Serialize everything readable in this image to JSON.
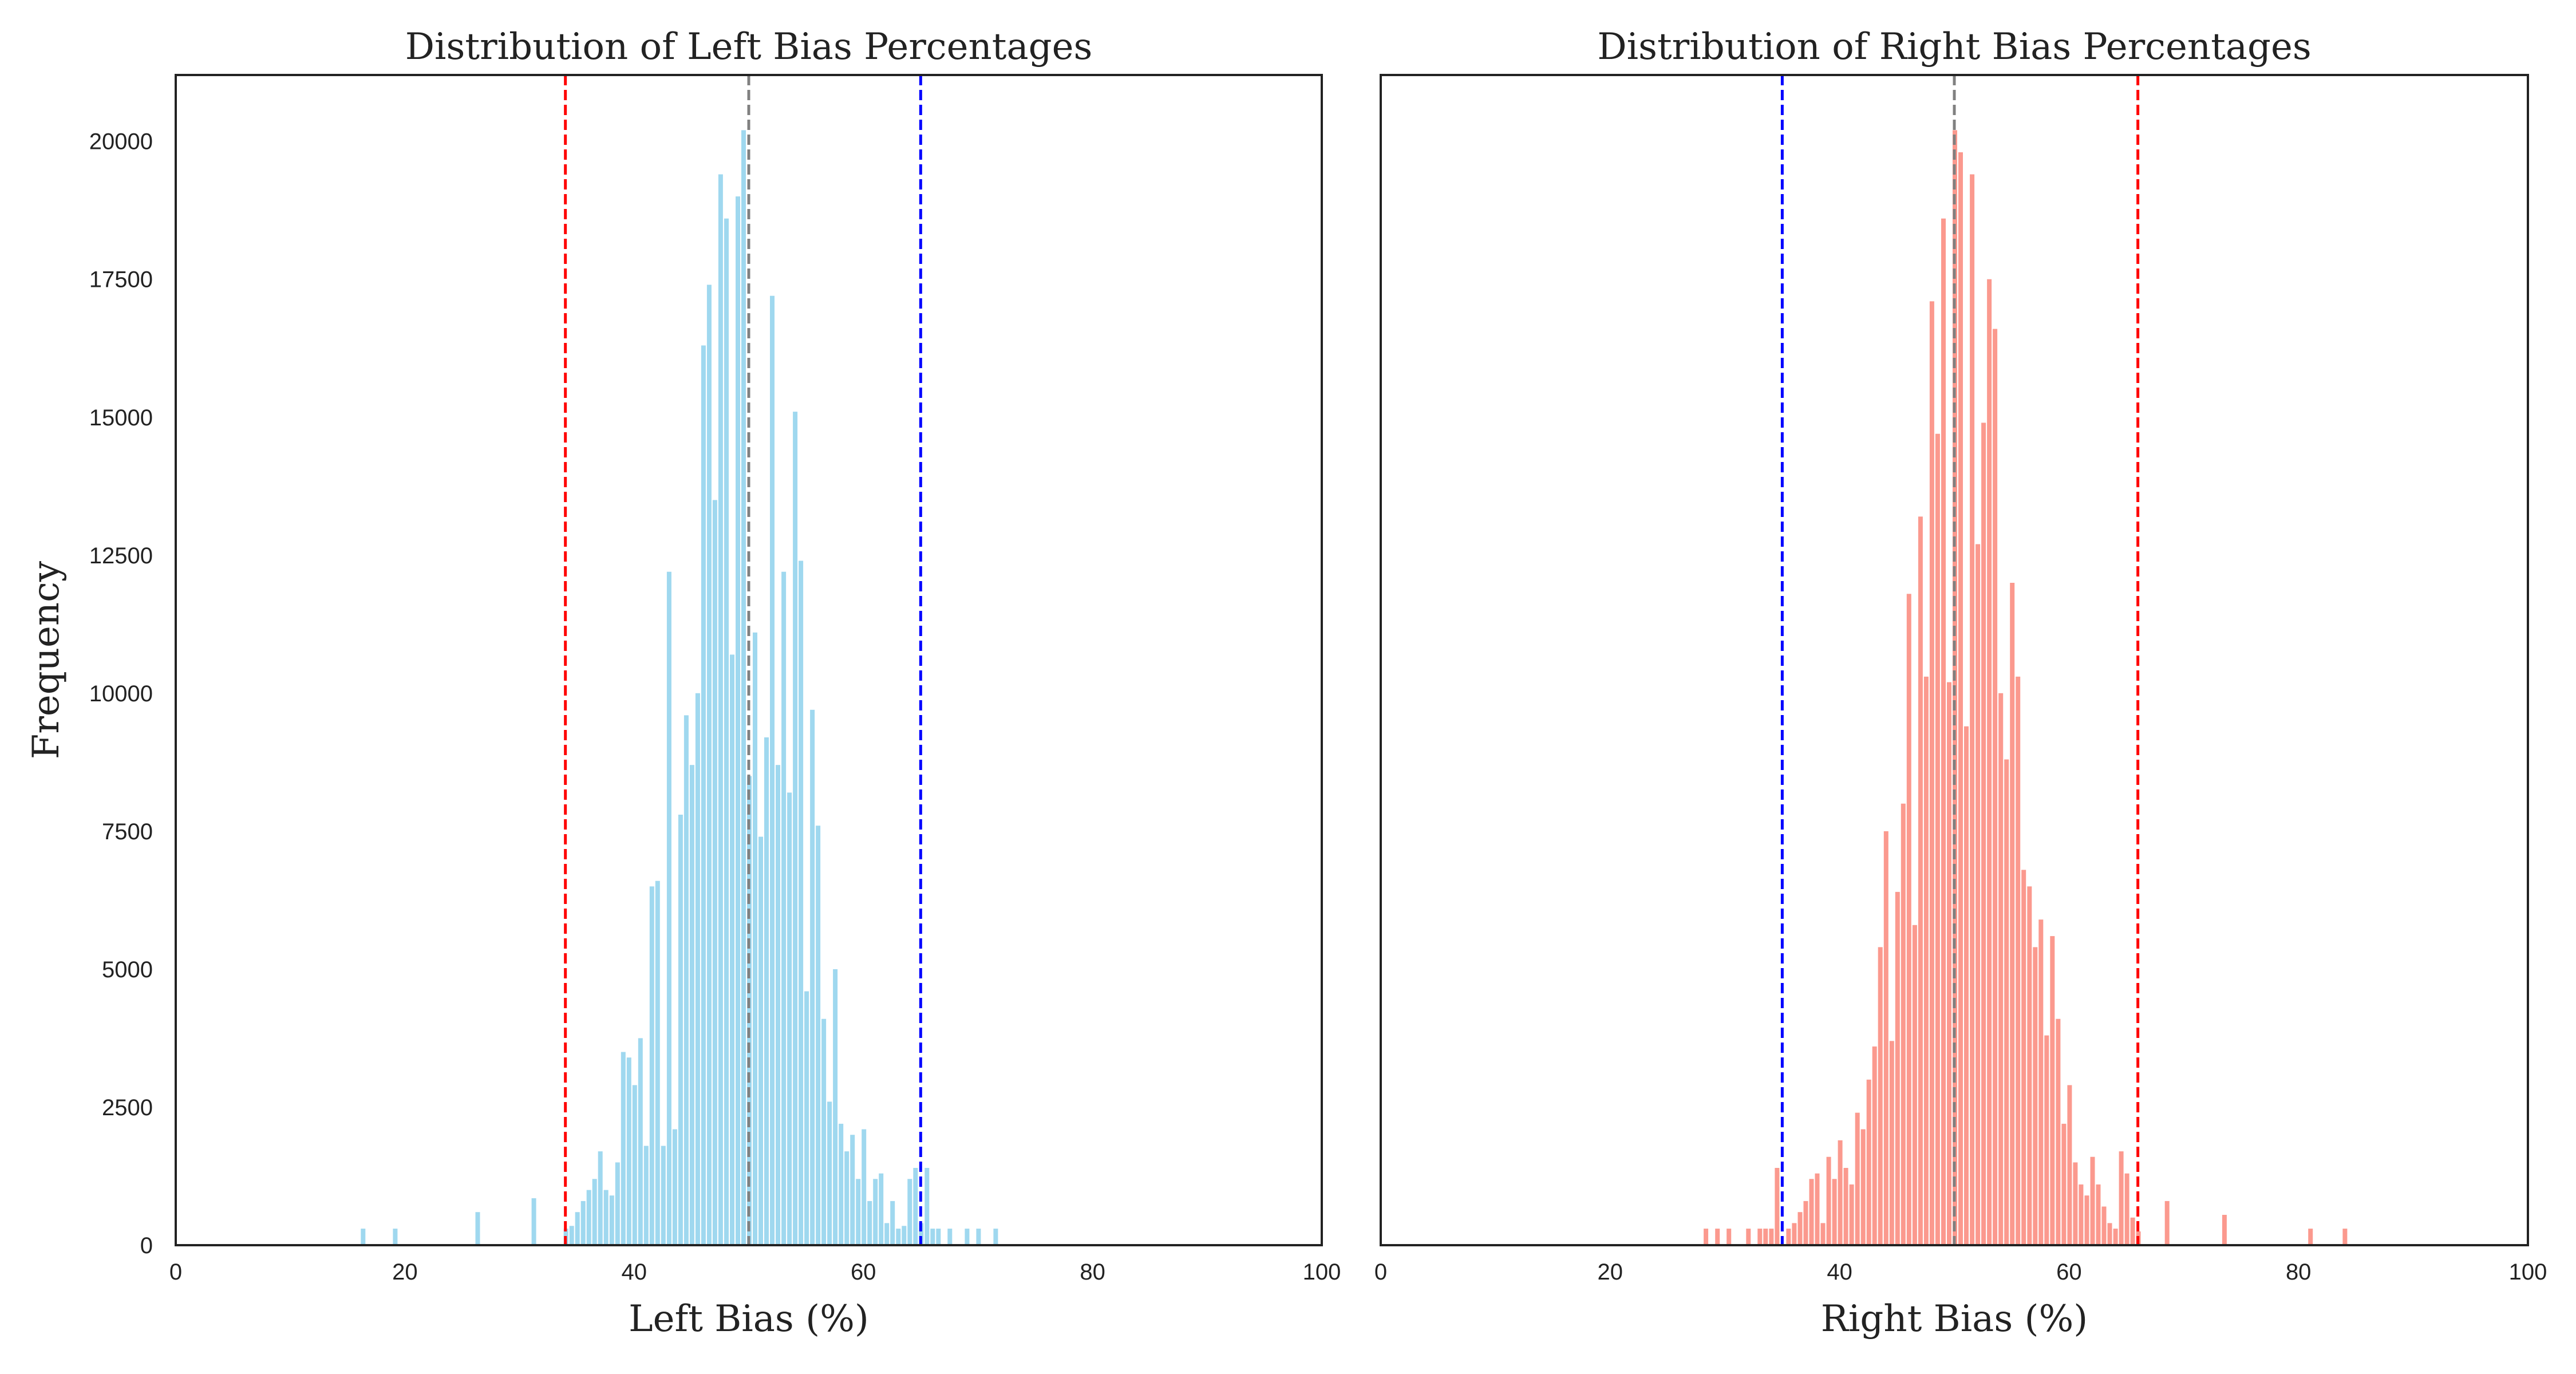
{
  "ylabel": "Frequency",
  "colors": {
    "left_bars": "#87ceeb",
    "right_bars": "#fa8072",
    "red_line": "#ff0000",
    "blue_line": "#0000ff",
    "gray_line": "#808080",
    "axes": "#222222"
  },
  "chart_data": [
    {
      "type": "bar",
      "title": "Distribution of Left Bias Percentages",
      "xlabel": "Left Bias (%)",
      "ylabel": "Frequency",
      "xlim": [
        0,
        100
      ],
      "ylim": [
        0,
        21200
      ],
      "xticks": [
        0,
        20,
        40,
        60,
        80,
        100
      ],
      "yticks": [
        0,
        2500,
        5000,
        7500,
        10000,
        12500,
        15000,
        17500,
        20000
      ],
      "bar_color": "#87ceeb",
      "bin_width": 0.5,
      "reference_lines": [
        {
          "x": 34,
          "color": "#ff0000",
          "style": "dashed"
        },
        {
          "x": 50,
          "color": "#808080",
          "style": "dashed"
        },
        {
          "x": 65,
          "color": "#0000ff",
          "style": "dashed"
        }
      ],
      "bins": [
        {
          "x": 16.4,
          "count": 300
        },
        {
          "x": 19.2,
          "count": 300
        },
        {
          "x": 26.4,
          "count": 600
        },
        {
          "x": 31.3,
          "count": 850
        },
        {
          "x": 34.1,
          "count": 300
        },
        {
          "x": 34.6,
          "count": 350
        },
        {
          "x": 35.1,
          "count": 600
        },
        {
          "x": 35.6,
          "count": 800
        },
        {
          "x": 36.1,
          "count": 1000
        },
        {
          "x": 36.6,
          "count": 1200
        },
        {
          "x": 37.1,
          "count": 1700
        },
        {
          "x": 37.6,
          "count": 1000
        },
        {
          "x": 38.1,
          "count": 900
        },
        {
          "x": 38.6,
          "count": 1500
        },
        {
          "x": 39.1,
          "count": 3500
        },
        {
          "x": 39.6,
          "count": 3400
        },
        {
          "x": 40.1,
          "count": 2900
        },
        {
          "x": 40.6,
          "count": 3750
        },
        {
          "x": 41.1,
          "count": 1800
        },
        {
          "x": 41.6,
          "count": 6500
        },
        {
          "x": 42.1,
          "count": 6600
        },
        {
          "x": 42.6,
          "count": 1800
        },
        {
          "x": 43.1,
          "count": 12200
        },
        {
          "x": 43.6,
          "count": 2100
        },
        {
          "x": 44.1,
          "count": 7800
        },
        {
          "x": 44.6,
          "count": 9600
        },
        {
          "x": 45.1,
          "count": 8700
        },
        {
          "x": 45.6,
          "count": 10000
        },
        {
          "x": 46.1,
          "count": 16300
        },
        {
          "x": 46.6,
          "count": 17400
        },
        {
          "x": 47.1,
          "count": 13500
        },
        {
          "x": 47.6,
          "count": 19400
        },
        {
          "x": 48.1,
          "count": 18600
        },
        {
          "x": 48.6,
          "count": 10700
        },
        {
          "x": 49.1,
          "count": 19000
        },
        {
          "x": 49.6,
          "count": 20200
        },
        {
          "x": 50.1,
          "count": 8500
        },
        {
          "x": 50.6,
          "count": 11100
        },
        {
          "x": 51.1,
          "count": 7400
        },
        {
          "x": 51.6,
          "count": 9200
        },
        {
          "x": 52.1,
          "count": 17200
        },
        {
          "x": 52.6,
          "count": 8700
        },
        {
          "x": 53.1,
          "count": 12200
        },
        {
          "x": 53.6,
          "count": 8200
        },
        {
          "x": 54.1,
          "count": 15100
        },
        {
          "x": 54.6,
          "count": 12400
        },
        {
          "x": 55.1,
          "count": 4600
        },
        {
          "x": 55.6,
          "count": 9700
        },
        {
          "x": 56.1,
          "count": 7600
        },
        {
          "x": 56.6,
          "count": 4100
        },
        {
          "x": 57.1,
          "count": 2600
        },
        {
          "x": 57.6,
          "count": 5000
        },
        {
          "x": 58.1,
          "count": 2200
        },
        {
          "x": 58.6,
          "count": 1700
        },
        {
          "x": 59.1,
          "count": 2000
        },
        {
          "x": 59.6,
          "count": 1200
        },
        {
          "x": 60.1,
          "count": 2100
        },
        {
          "x": 60.6,
          "count": 800
        },
        {
          "x": 61.1,
          "count": 1200
        },
        {
          "x": 61.6,
          "count": 1300
        },
        {
          "x": 62.1,
          "count": 400
        },
        {
          "x": 62.6,
          "count": 800
        },
        {
          "x": 63.1,
          "count": 300
        },
        {
          "x": 63.6,
          "count": 350
        },
        {
          "x": 64.1,
          "count": 1200
        },
        {
          "x": 64.6,
          "count": 1400
        },
        {
          "x": 65.1,
          "count": 400
        },
        {
          "x": 65.6,
          "count": 1400
        },
        {
          "x": 66.1,
          "count": 300
        },
        {
          "x": 66.6,
          "count": 300
        },
        {
          "x": 67.6,
          "count": 300
        },
        {
          "x": 69.1,
          "count": 300
        },
        {
          "x": 70.1,
          "count": 300
        },
        {
          "x": 71.6,
          "count": 300
        }
      ]
    },
    {
      "type": "bar",
      "title": "Distribution of Right Bias Percentages",
      "xlabel": "Right Bias (%)",
      "ylabel": "",
      "xlim": [
        0,
        100
      ],
      "ylim": [
        0,
        21200
      ],
      "xticks": [
        0,
        20,
        40,
        60,
        80,
        100
      ],
      "yticks": [],
      "bar_color": "#fa8072",
      "bin_width": 0.5,
      "reference_lines": [
        {
          "x": 35,
          "color": "#0000ff",
          "style": "dashed"
        },
        {
          "x": 50,
          "color": "#808080",
          "style": "dashed"
        },
        {
          "x": 66,
          "color": "#ff0000",
          "style": "dashed"
        }
      ],
      "bins": [
        {
          "x": 28.4,
          "count": 300
        },
        {
          "x": 29.4,
          "count": 300
        },
        {
          "x": 30.4,
          "count": 300
        },
        {
          "x": 32.1,
          "count": 300
        },
        {
          "x": 33.1,
          "count": 300
        },
        {
          "x": 33.6,
          "count": 300
        },
        {
          "x": 34.1,
          "count": 300
        },
        {
          "x": 34.6,
          "count": 1400
        },
        {
          "x": 35.6,
          "count": 300
        },
        {
          "x": 36.1,
          "count": 400
        },
        {
          "x": 36.6,
          "count": 600
        },
        {
          "x": 37.1,
          "count": 800
        },
        {
          "x": 37.6,
          "count": 1200
        },
        {
          "x": 38.1,
          "count": 1300
        },
        {
          "x": 38.6,
          "count": 400
        },
        {
          "x": 39.1,
          "count": 1600
        },
        {
          "x": 39.6,
          "count": 1200
        },
        {
          "x": 40.1,
          "count": 1900
        },
        {
          "x": 40.6,
          "count": 1400
        },
        {
          "x": 41.1,
          "count": 1100
        },
        {
          "x": 41.6,
          "count": 2400
        },
        {
          "x": 42.1,
          "count": 2100
        },
        {
          "x": 42.6,
          "count": 3000
        },
        {
          "x": 43.1,
          "count": 3600
        },
        {
          "x": 43.6,
          "count": 5400
        },
        {
          "x": 44.1,
          "count": 7500
        },
        {
          "x": 44.6,
          "count": 3700
        },
        {
          "x": 45.1,
          "count": 6400
        },
        {
          "x": 45.6,
          "count": 8000
        },
        {
          "x": 46.1,
          "count": 11800
        },
        {
          "x": 46.6,
          "count": 5800
        },
        {
          "x": 47.1,
          "count": 13200
        },
        {
          "x": 47.6,
          "count": 10300
        },
        {
          "x": 48.1,
          "count": 17100
        },
        {
          "x": 48.6,
          "count": 14700
        },
        {
          "x": 49.1,
          "count": 18600
        },
        {
          "x": 49.6,
          "count": 10200
        },
        {
          "x": 50.1,
          "count": 20200
        },
        {
          "x": 50.6,
          "count": 19800
        },
        {
          "x": 51.1,
          "count": 9400
        },
        {
          "x": 51.6,
          "count": 19400
        },
        {
          "x": 52.1,
          "count": 12700
        },
        {
          "x": 52.6,
          "count": 14900
        },
        {
          "x": 53.1,
          "count": 17500
        },
        {
          "x": 53.6,
          "count": 16600
        },
        {
          "x": 54.1,
          "count": 10000
        },
        {
          "x": 54.6,
          "count": 8800
        },
        {
          "x": 55.1,
          "count": 12000
        },
        {
          "x": 55.6,
          "count": 10300
        },
        {
          "x": 56.1,
          "count": 6800
        },
        {
          "x": 56.6,
          "count": 6500
        },
        {
          "x": 57.1,
          "count": 5400
        },
        {
          "x": 57.6,
          "count": 5900
        },
        {
          "x": 58.1,
          "count": 3800
        },
        {
          "x": 58.6,
          "count": 5600
        },
        {
          "x": 59.1,
          "count": 4100
        },
        {
          "x": 59.6,
          "count": 2200
        },
        {
          "x": 60.1,
          "count": 2900
        },
        {
          "x": 60.6,
          "count": 1500
        },
        {
          "x": 61.1,
          "count": 1100
        },
        {
          "x": 61.6,
          "count": 900
        },
        {
          "x": 62.1,
          "count": 1600
        },
        {
          "x": 62.6,
          "count": 1100
        },
        {
          "x": 63.1,
          "count": 700
        },
        {
          "x": 63.6,
          "count": 400
        },
        {
          "x": 64.1,
          "count": 300
        },
        {
          "x": 64.6,
          "count": 1700
        },
        {
          "x": 65.1,
          "count": 1300
        },
        {
          "x": 65.6,
          "count": 500
        },
        {
          "x": 66.1,
          "count": 250
        },
        {
          "x": 68.6,
          "count": 800
        },
        {
          "x": 73.6,
          "count": 550
        },
        {
          "x": 81.1,
          "count": 300
        },
        {
          "x": 84.1,
          "count": 300
        }
      ]
    }
  ]
}
